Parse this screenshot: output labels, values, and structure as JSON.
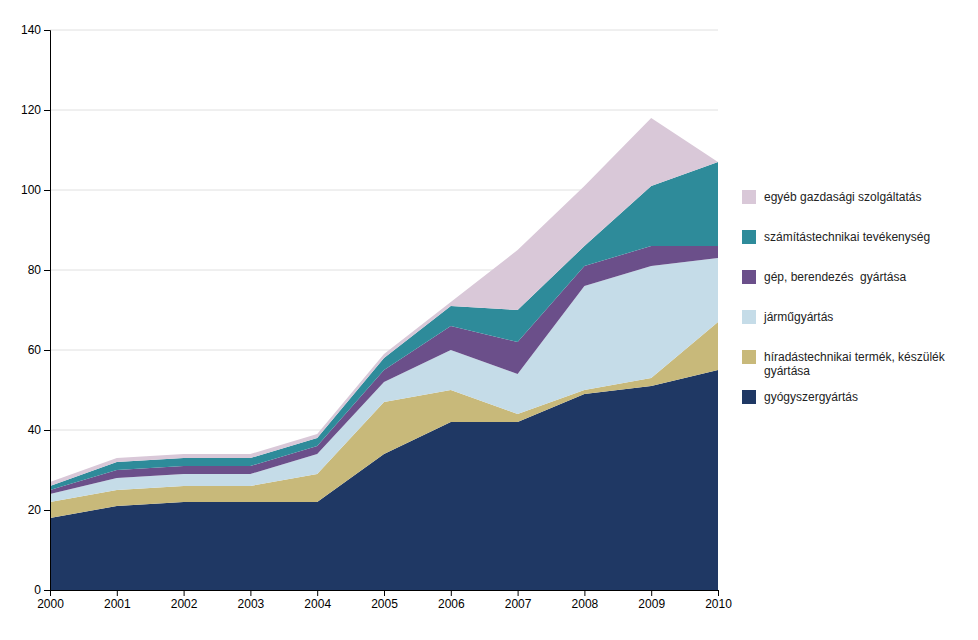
{
  "chart_data": {
    "type": "area",
    "stacked": true,
    "x": [
      2000,
      2001,
      2002,
      2003,
      2004,
      2005,
      2006,
      2007,
      2008,
      2009,
      2010
    ],
    "series": [
      {
        "name": "gyógyszergyártás",
        "color": "#1f3864",
        "values": [
          18,
          21,
          22,
          22,
          22,
          34,
          42,
          42,
          49,
          51,
          55
        ]
      },
      {
        "name": "híradástechnikai termék, készülék\ngyártása",
        "color": "#c8b97a",
        "values": [
          4,
          4,
          4,
          4,
          7,
          13,
          8,
          2,
          1,
          2,
          12
        ]
      },
      {
        "name": "járműgyártás",
        "color": "#c5dce8",
        "values": [
          2,
          3,
          3,
          3,
          5,
          5,
          10,
          10,
          26,
          28,
          16
        ]
      },
      {
        "name": "gép, berendezés  gyártása",
        "color": "#6b4f8a",
        "values": [
          1,
          2,
          2,
          2,
          2,
          3,
          6,
          8,
          5,
          5,
          3
        ]
      },
      {
        "name": "számítástechnikai tevékenység",
        "color": "#2e8b9a",
        "values": [
          1,
          2,
          2,
          2,
          2,
          3,
          5,
          8,
          5,
          15,
          21
        ]
      },
      {
        "name": "egyéb gazdasági szolgáltatás",
        "color": "#d9c8d8",
        "values": [
          1,
          1,
          1,
          1,
          1,
          1,
          1,
          15,
          15,
          17,
          0
        ]
      }
    ],
    "xlim": [
      2000,
      2010
    ],
    "xticks": [
      2000,
      2001,
      2002,
      2003,
      2004,
      2005,
      2006,
      2007,
      2008,
      2009,
      2010
    ],
    "ylim": [
      0,
      140
    ],
    "yticks": [
      0,
      20,
      40,
      60,
      80,
      100,
      120,
      140
    ],
    "grid": true,
    "legend": "right"
  }
}
